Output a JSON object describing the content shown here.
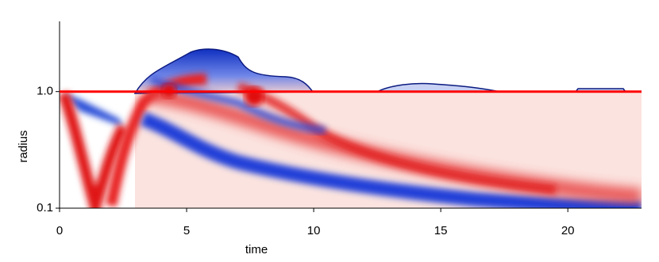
{
  "chart_data": {
    "type": "heatmap",
    "xlabel": "time",
    "ylabel": "radius",
    "xlim": [
      0,
      22.9
    ],
    "ylim": [
      0.1,
      4
    ],
    "yscale": "log",
    "xticks": [
      0,
      5,
      10,
      15,
      20
    ],
    "yticks": [
      0.1,
      {
        "value": 1,
        "label": "1.0"
      }
    ],
    "reference_line": {
      "y": 1,
      "color": "#ff0000"
    }
  }
}
